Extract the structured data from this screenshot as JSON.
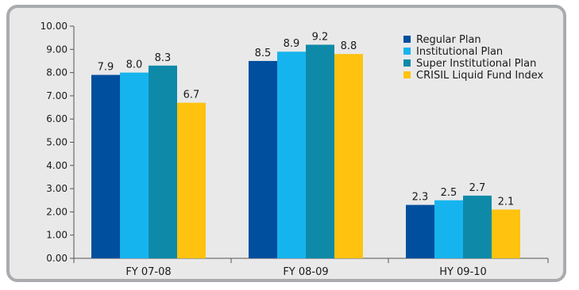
{
  "chart_data": {
    "type": "bar",
    "title": "",
    "xlabel": "",
    "ylabel": "",
    "ylim": [
      0,
      10
    ],
    "yticks": [
      "0.00",
      "1.00",
      "2.00",
      "3.00",
      "4.00",
      "5.00",
      "6.00",
      "7.00",
      "8.00",
      "9.00",
      "10.00"
    ],
    "categories": [
      "FY 07-08",
      "FY 08-09",
      "HY 09-10"
    ],
    "series": [
      {
        "name": "Regular Plan",
        "color": "#004f9e",
        "values": [
          7.9,
          8.5,
          2.3
        ],
        "labels": [
          "7.9",
          "8.5",
          "2.3"
        ]
      },
      {
        "name": "Institutional Plan",
        "color": "#16b4ee",
        "values": [
          8.0,
          8.9,
          2.5
        ],
        "labels": [
          "8.0",
          "8.9",
          "2.5"
        ]
      },
      {
        "name": "Super Institutional Plan",
        "color": "#0e8aa8",
        "values": [
          8.3,
          9.2,
          2.7
        ],
        "labels": [
          "8.3",
          "9.2",
          "2.7"
        ]
      },
      {
        "name": "CRISIL Liquid Fund Index",
        "color": "#ffc20e",
        "values": [
          6.7,
          8.8,
          2.1
        ],
        "labels": [
          "6.7",
          "8.8",
          "2.1"
        ]
      }
    ],
    "legend_position": "top-right",
    "grid": false
  }
}
